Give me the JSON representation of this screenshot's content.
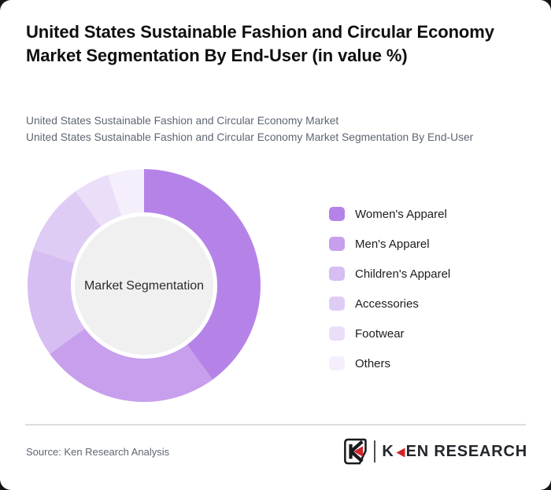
{
  "header": {
    "title": "United States Sustainable Fashion and Circular Economy Market Segmentation By End-User (in value %)",
    "subtitle_line1": "United States Sustainable Fashion and Circular Economy Market",
    "subtitle_line2": "United States Sustainable Fashion and Circular Economy Market Segmentation By End-User"
  },
  "chart_data": {
    "type": "pie",
    "variant": "donut",
    "title": "United States Sustainable Fashion and Circular Economy Market Segmentation By End-User (in value %)",
    "center_label": "Market Segmentation",
    "categories": [
      "Women's Apparel",
      "Men's Apparel",
      "Children's Apparel",
      "Accessories",
      "Footwear",
      "Others"
    ],
    "values": [
      40,
      25,
      15,
      10,
      5,
      5
    ],
    "unit": "value %",
    "colors": [
      "#b583e8",
      "#c79fec",
      "#d6bdf2",
      "#dfccf5",
      "#ebdef9",
      "#f5effc"
    ],
    "hole_color": "#f0f0f0",
    "start_angle_deg": 0,
    "direction": "clockwise",
    "legend_position": "right"
  },
  "footer": {
    "source_label": "Source: Ken Research Analysis",
    "logo": {
      "emblem_letter": "K",
      "wordmark_prefix": "K",
      "wordmark_suffix": "EN RESEARCH",
      "accent_red": "#d2232a",
      "dark": "#23262b"
    }
  }
}
